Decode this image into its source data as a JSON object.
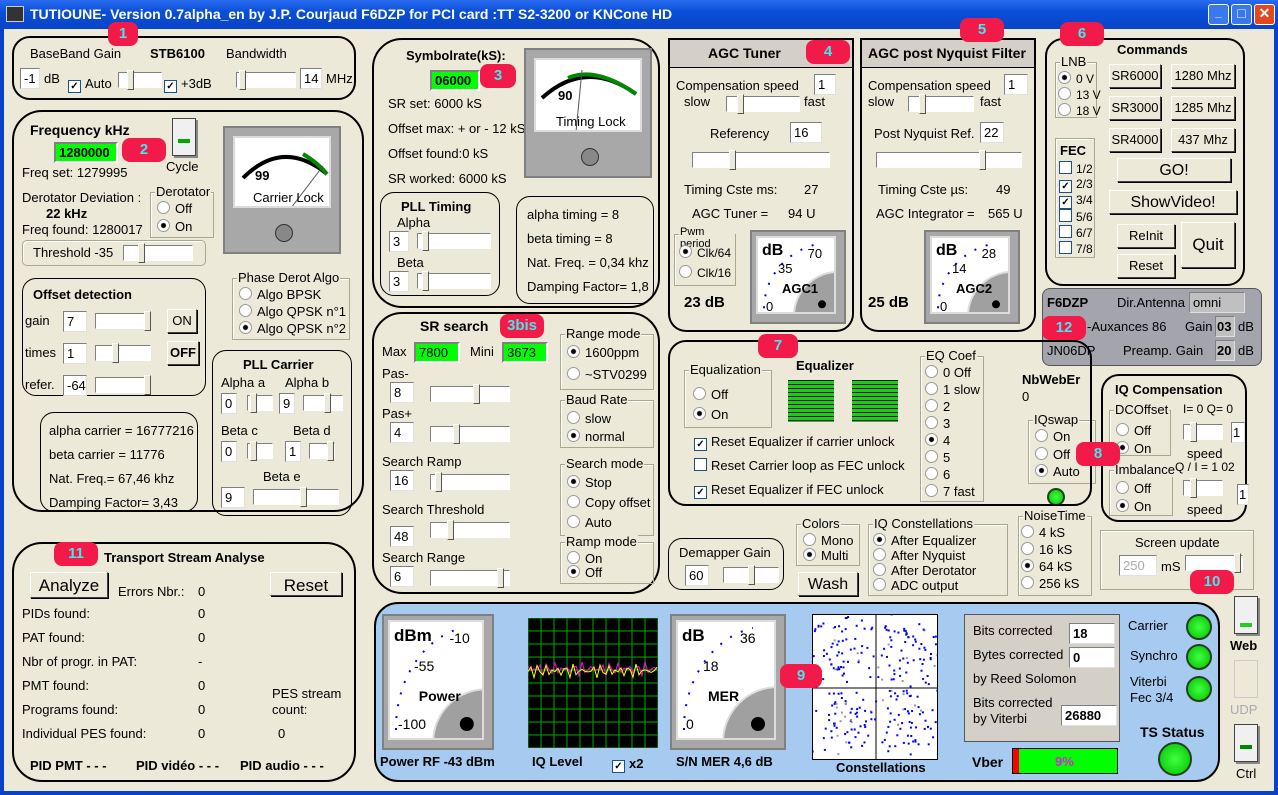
{
  "window": {
    "title": "TUTIOUNE-  Version 0.7alpha_en by J.P. Courjaud F6DZP  for PCI card :TT S2-3200 or KNCone HD"
  },
  "badges": [
    "1",
    "2",
    "3",
    "3bis",
    "4",
    "5",
    "6",
    "7",
    "8",
    "9",
    "10",
    "11",
    "12"
  ],
  "baseband": {
    "gain_label": "BaseBand Gain",
    "chip": "STB6100",
    "bandwidth_label": "Bandwidth",
    "gain": "-1",
    "db": "dB",
    "auto": "Auto",
    "plus3": "+3dB",
    "bandwidth": "14",
    "mhz": "MHz"
  },
  "frequency": {
    "title": "Frequency kHz",
    "value": "1280000",
    "cycle": "Cycle",
    "freq_set": "Freq set: 1279995",
    "deviation_label": "Derotator Deviation :",
    "deviation": "22 kHz",
    "freq_found": "Freq found: 1280017",
    "derotator": "Derotator",
    "off": "Off",
    "on": "On",
    "threshold": "Threshold -35",
    "meter_value": "99",
    "meter_label": "Carrier Lock",
    "offset": {
      "title": "Offset detection",
      "gain": "gain",
      "times": "times",
      "refer": "refer.",
      "gain_v": "7",
      "times_v": "1",
      "refer_v": "-64",
      "on": "ON",
      "off": "OFF"
    },
    "phase": {
      "title": "Phase Derot Algo",
      "o1": "Algo BPSK",
      "o2": "Algo QPSK n°1",
      "o3": "Algo QPSK n°2"
    },
    "stats": [
      "alpha carrier = 16777216",
      "beta carrier = 11776",
      "Nat. Freq.= 67,46 khz",
      "Damping Factor= 3,43"
    ],
    "pll": {
      "title": "PLL Carrier",
      "alpha_a": "Alpha a",
      "alpha_b": "Alpha b",
      "beta_c": "Beta c",
      "beta_d": "Beta d",
      "beta_e": "Beta e",
      "a": "0",
      "b": "9",
      "c": "0",
      "d": "1",
      "e": "9"
    }
  },
  "symbolrate": {
    "title": "Symbolrate(kS):",
    "value": "06000",
    "sr_set": "SR set: 6000 kS",
    "offset_max": "Offset max: + or - 12 kS",
    "offset_found": "Offset found:0 kS",
    "sr_worked": "SR worked: 6000 kS",
    "meter_value": "90",
    "meter_label": "Timing Lock",
    "pll": {
      "title": "PLL Timing",
      "alpha": "Alpha",
      "beta": "Beta",
      "alpha_v": "3",
      "beta_v": "3"
    },
    "stats": [
      "alpha timing = 8",
      "beta timing = 8",
      "Nat. Freq. = 0,34 khz",
      "Damping Factor= 1,8"
    ]
  },
  "srsearch": {
    "title": "SR search",
    "max": "Max",
    "max_v": "7800",
    "mini": "Mini",
    "mini_v": "3673",
    "pas_minus": "Pas-",
    "pas_minus_v": "8",
    "pas_plus": "Pas+",
    "pas_plus_v": "4",
    "ramp": "Search Ramp",
    "ramp_v": "16",
    "threshold": "Search Threshold",
    "threshold_v": "48",
    "range": "Search Range",
    "range_v": "6",
    "range_mode": "Range mode",
    "r1": "1600ppm",
    "r2": "~STV0299",
    "baud": "Baud Rate",
    "slow": "slow",
    "normal": "normal",
    "search_mode": "Search mode",
    "stop": "Stop",
    "copy": "Copy offset",
    "auto": "Auto",
    "ramp_mode": "Ramp mode",
    "on": "On",
    "off": "Off"
  },
  "agc_tuner": {
    "title": "AGC Tuner",
    "comp": "Compensation speed",
    "comp_v": "1",
    "slow": "slow",
    "fast": "fast",
    "ref": "Referency",
    "ref_v": "16",
    "timing": "Timing Cste ms:",
    "timing_v": "27",
    "agc": "AGC Tuner =",
    "agc_v": "94 U",
    "pwm": "Pwm period",
    "clk64": "Clk/64",
    "clk16": "Clk/16",
    "db": "23 dB",
    "meter": {
      "unit": "dB",
      "t1": "70",
      "t2": "35",
      "t3": "0",
      "label": "AGC1"
    }
  },
  "agc_post": {
    "title": "AGC post Nyquist Filter",
    "comp": "Compensation speed",
    "comp_v": "1",
    "slow": "slow",
    "fast": "fast",
    "ref": "Post Nyquist Ref.",
    "ref_v": "22",
    "timing": "Timing Cste µs:",
    "timing_v": "49",
    "agc": "AGC Integrator =",
    "agc_v": "565 U",
    "db": "25 dB",
    "meter": {
      "unit": "dB",
      "t1": "28",
      "t2": "14",
      "t3": "0",
      "label": "AGC2"
    }
  },
  "commands": {
    "title": "Commands",
    "lnb": "LNB",
    "v0": "0 V",
    "v13": "13 V",
    "v18": "18 V",
    "sr6000": "SR6000",
    "sr3000": "SR3000",
    "sr4000": "SR4000",
    "f1280": "1280 Mhz",
    "f1285": "1285 Mhz",
    "f437": "437 Mhz",
    "fec": "FEC",
    "fecs": [
      "1/2",
      "2/3",
      "3/4",
      "5/6",
      "6/7",
      "7/8"
    ],
    "go": "GO!",
    "show": "ShowVideo!",
    "reinit": "ReInit",
    "reset": "Reset",
    "quit": "Quit"
  },
  "station": {
    "call": "F6DZP",
    "dir": "Dir.Antenna",
    "dir_v": "omni",
    "loc": "-Auxances 86",
    "gain": "Gain",
    "gain_v": "03",
    "db": "dB",
    "grid": "JN06DP",
    "preamp": "Preamp. Gain",
    "preamp_v": "20"
  },
  "nbweber": {
    "label": "NbWebEr",
    "value": "0"
  },
  "iqswap": {
    "title": "IQswap",
    "on": "On",
    "off": "Off",
    "auto": "Auto"
  },
  "iqcomp": {
    "title": "IQ Compensation",
    "dc": "DCOffset",
    "off": "Off",
    "on": "On",
    "iq": "I=  0   Q= 0",
    "speed": "speed",
    "v1": "1",
    "imb": "Imbalance",
    "qi": "Q / I =  1 02",
    "v2": "1"
  },
  "equalizer": {
    "title": "Equalizer",
    "eq": "Equalization",
    "off": "Off",
    "on": "On",
    "r1": "Reset Equalizer if carrier unlock",
    "r2": "Reset Carrier loop as FEC unlock",
    "r3": "Reset Equalizer if FEC unlock",
    "coef": "EQ Coef",
    "coefs": [
      "0 Off",
      "1 slow",
      "2",
      "3",
      "4",
      "5",
      "6",
      "7 fast"
    ]
  },
  "noise": {
    "title": "NoiseTime",
    "o": [
      "4 kS",
      "16 kS",
      "64 kS",
      "256 kS"
    ]
  },
  "screen": {
    "title": "Screen update",
    "value": "250",
    "unit": "mS"
  },
  "demapper": {
    "title": "Demapper Gain",
    "value": "60"
  },
  "colors": {
    "title": "Colors",
    "mono": "Mono",
    "multi": "Multi",
    "wash": "Wash"
  },
  "iqconst": {
    "title": "IQ Constellations",
    "o": [
      "After Equalizer",
      "After Nyquist",
      "After Derotator",
      "ADC output"
    ]
  },
  "ts": {
    "title": "Transport Stream Analyse",
    "analyze": "Analyze",
    "errors": "Errors  Nbr.:",
    "errors_v": "0",
    "reset": "Reset",
    "rows": [
      {
        "l": "PIDs found:",
        "v": "0"
      },
      {
        "l": "PAT found:",
        "v": "0"
      },
      {
        "l": "Nbr of progr. in PAT:",
        "v": "-"
      },
      {
        "l": "PMT found:",
        "v": "0"
      },
      {
        "l": "Programs found:",
        "v": "0"
      },
      {
        "l": "Individual PES found:",
        "v": "0"
      }
    ],
    "pes": "PES stream",
    "count": "count:",
    "count_v": "0",
    "pid_pmt": "PID PMT - - -",
    "pid_video": "PID vidéo - - -",
    "pid_audio": "PID audio - - -"
  },
  "bottom": {
    "power": {
      "unit": "dBm",
      "t1": "-10",
      "t2": "-55",
      "t3": "-100",
      "label": "Power"
    },
    "power_rf": "Power RF -43 dBm",
    "iq_level": "IQ Level",
    "x2": "x2",
    "mer": {
      "unit": "dB",
      "t1": "36",
      "t2": "18",
      "t3": "0",
      "label": "MER"
    },
    "sn_mer": "S/N MER  4,6 dB",
    "constellations": "Constellations",
    "bits": "Bits corrected",
    "bits_v": "18",
    "bytes": "Bytes corrected",
    "bytes_v": "0",
    "rs": "by Reed Solomon",
    "bits_vit": "Bits corrected",
    "by_vit": "by Viterbi",
    "vit_v": "26880",
    "vber": "Vber",
    "vber_v": "9%",
    "vber_pct": 9,
    "carrier": "Carrier",
    "synchro": "Synchro",
    "viterbi": "Viterbi",
    "fec": "Fec  3/4",
    "ts_status": "TS Status"
  },
  "side": {
    "web": "Web",
    "udp": "UDP",
    "ctrl": "Ctrl"
  },
  "colors_theme": {
    "led": "#00ff00",
    "badge": "#f21a48",
    "bottom_panel": "#a6caf0",
    "value_box": "#00ff00"
  }
}
